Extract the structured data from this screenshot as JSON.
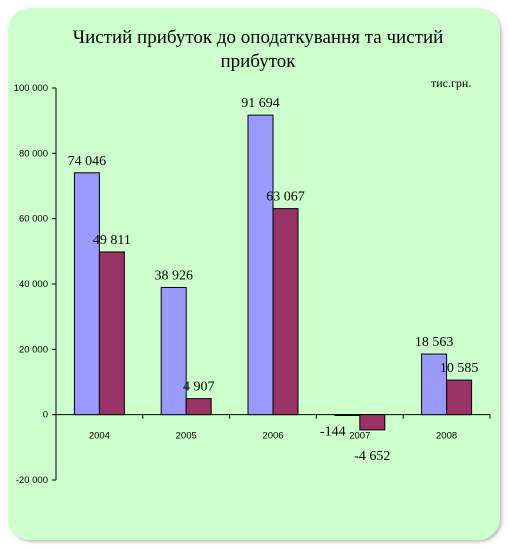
{
  "chart_data": {
    "type": "bar",
    "title": "Чистий прибуток до оподаткування та чистий прибуток",
    "title_lines": [
      "Чистий прибуток до оподаткування та чистий",
      "прибуток"
    ],
    "unit": "тис.грн.",
    "categories": [
      "2004",
      "2005",
      "2006",
      "2007",
      "2008"
    ],
    "series": [
      {
        "values": [
          74046,
          38926,
          91694,
          -144,
          18563
        ],
        "labels": [
          "74 046",
          "38 926",
          "91 694",
          "-144",
          "18 563"
        ],
        "color": "#9999ff"
      },
      {
        "values": [
          49811,
          4907,
          63067,
          -4652,
          10585
        ],
        "labels": [
          "49 811",
          "4 907",
          "63 067",
          "-4 652",
          "10 585"
        ],
        "color": "#993366"
      }
    ],
    "ylim": [
      -20000,
      100000
    ],
    "yticks": [
      -20000,
      0,
      20000,
      40000,
      60000,
      80000,
      100000
    ],
    "ytick_labels": [
      "-20 000",
      "0",
      "20 000",
      "40 000",
      "60 000",
      "80 000",
      "100 000"
    ],
    "grid": false,
    "legend": "none",
    "background": "#ccffcc"
  }
}
